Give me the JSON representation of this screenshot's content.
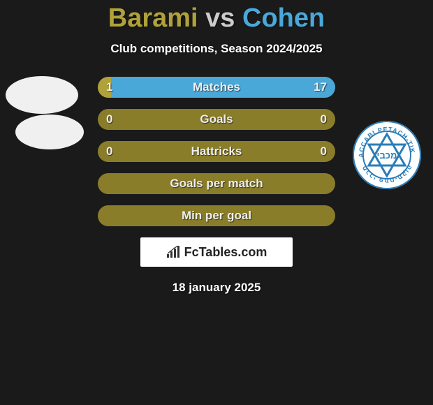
{
  "title": {
    "player1": "Barami",
    "vs": " vs ",
    "player2": "Cohen",
    "player1_color": "#b0a23a",
    "player2_color": "#4aa8d8"
  },
  "subtitle": "Club competitions, Season 2024/2025",
  "colors": {
    "left_fill": "#b0a23a",
    "right_fill": "#4aa8d8",
    "empty_fill": "#8a7d2a",
    "background": "#1a1a1a",
    "text": "#eeeeee"
  },
  "stats": [
    {
      "label": "Matches",
      "left_value": "1",
      "right_value": "17",
      "left_pct": 5.56,
      "right_pct": 94.44,
      "empty": false
    },
    {
      "label": "Goals",
      "left_value": "0",
      "right_value": "0",
      "left_pct": 0,
      "right_pct": 0,
      "empty": true
    },
    {
      "label": "Hattricks",
      "left_value": "0",
      "right_value": "0",
      "left_pct": 0,
      "right_pct": 0,
      "empty": true
    },
    {
      "label": "Goals per match",
      "left_value": "",
      "right_value": "",
      "left_pct": 0,
      "right_pct": 0,
      "empty": true
    },
    {
      "label": "Min per goal",
      "left_value": "",
      "right_value": "",
      "left_pct": 0,
      "right_pct": 0,
      "empty": true
    }
  ],
  "branding": "FcTables.com",
  "date": "18 january 2025",
  "badge": {
    "outer_text_color": "#2a7db8",
    "star_color": "#2a7db8",
    "ring_color": "#2a7db8"
  }
}
